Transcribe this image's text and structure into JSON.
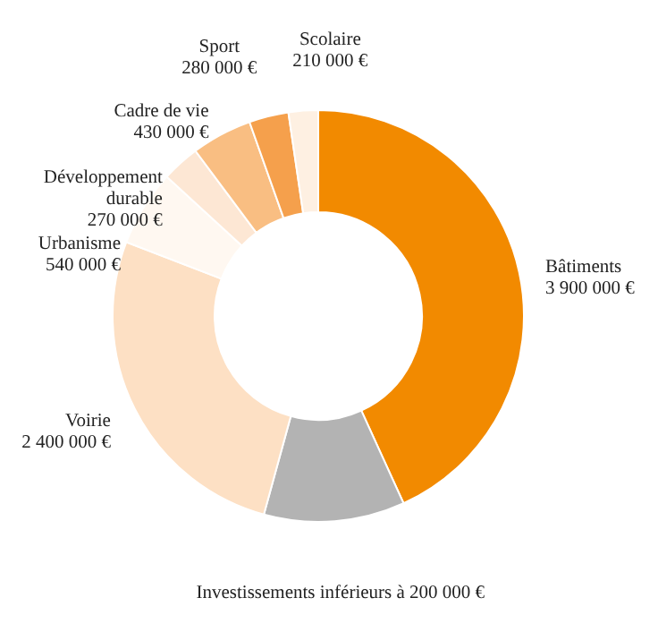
{
  "chart_data": {
    "type": "donut",
    "categories": [
      "Bâtiments",
      "Investissements inférieurs à 200 000 €",
      "Voirie",
      "Urbanisme",
      "Développement durable",
      "Cadre de vie",
      "Sport",
      "Scolaire"
    ],
    "values": [
      3900000,
      1000000,
      2400000,
      540000,
      270000,
      430000,
      280000,
      210000
    ],
    "value_labels": [
      "3 900 000 €",
      null,
      "2 400 000 €",
      "540 000 €",
      "270 000 €",
      "430 000 €",
      "280 000 €",
      "210 000 €"
    ],
    "colors": [
      "#f28a00",
      "#b3b3b3",
      "#fde0c4",
      "#fff8f1",
      "#fde7d4",
      "#f9be82",
      "#f5a04c",
      "#fef0e2"
    ]
  }
}
